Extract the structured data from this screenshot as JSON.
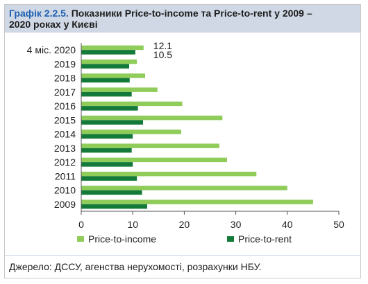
{
  "title": {
    "figure_label": "Графік 2.2.5.",
    "text_line1": "Показники Price-to-income та Price-to-rent у 2009 –",
    "text_line2": "2020 роках у Києві"
  },
  "source": "Джерело: ДССУ, агенства нерухомості, розрахунки НБУ.",
  "colors": {
    "price_to_income": "#8fcc5a",
    "price_to_rent": "#137a3a",
    "axis": "#555555"
  },
  "chart_data": {
    "type": "bar",
    "orientation": "horizontal",
    "categories": [
      "4 міс. 2020",
      "2019",
      "2018",
      "2017",
      "2016",
      "2015",
      "2014",
      "2013",
      "2012",
      "2011",
      "2010",
      "2009"
    ],
    "series": [
      {
        "name": "Price-to-income",
        "values": [
          12.1,
          10.8,
          12.4,
          14.8,
          19.6,
          27.4,
          19.4,
          26.8,
          28.3,
          34.0,
          40.0,
          45.0
        ]
      },
      {
        "name": "Price-to-rent",
        "values": [
          10.5,
          9.3,
          9.4,
          9.8,
          11.0,
          12.0,
          10.0,
          9.8,
          10.0,
          10.8,
          11.8,
          12.8
        ]
      }
    ],
    "data_labels": [
      {
        "series": 0,
        "index": 0,
        "text": "12.1"
      },
      {
        "series": 1,
        "index": 0,
        "text": "10.5"
      }
    ],
    "xlim": [
      0,
      50
    ],
    "xticks": [
      0,
      10,
      20,
      30,
      40,
      50
    ],
    "legend_position": "bottom",
    "grid": false
  }
}
